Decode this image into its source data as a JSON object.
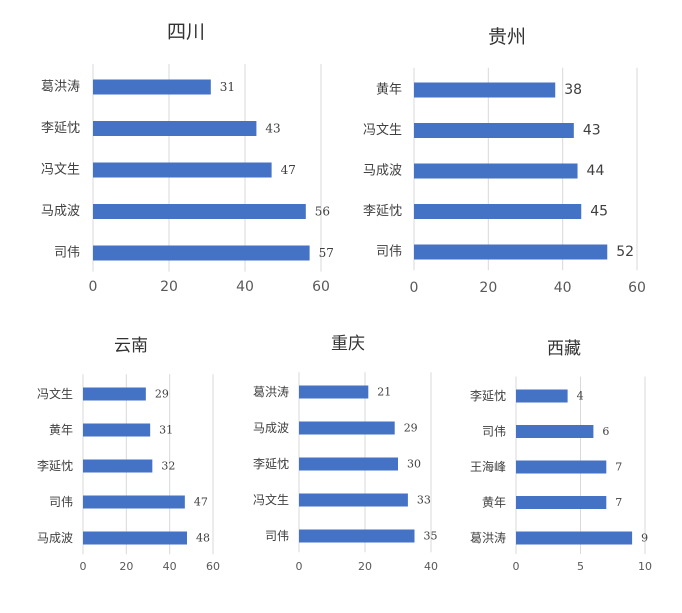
{
  "colors": {
    "bar": "#4472c4",
    "grid": "#d9d9d9",
    "text": "#404040"
  },
  "chart_data": [
    {
      "type": "bar",
      "orientation": "horizontal",
      "title": "四川",
      "categories": [
        "葛洪涛",
        "李延忱",
        "冯文生",
        "马成波",
        "司伟"
      ],
      "values": [
        31,
        43,
        47,
        56,
        57
      ],
      "xlim": [
        0,
        60
      ],
      "xticks": [
        "0",
        "20",
        "40",
        "60"
      ],
      "grid": true
    },
    {
      "type": "bar",
      "orientation": "horizontal",
      "title": "贵州",
      "categories": [
        "黄年",
        "冯文生",
        "马成波",
        "李延忱",
        "司伟"
      ],
      "values": [
        38,
        43,
        44,
        45,
        52
      ],
      "xlim": [
        0,
        60
      ],
      "xticks": [
        "0",
        "20",
        "40",
        "60"
      ],
      "grid": true
    },
    {
      "type": "bar",
      "orientation": "horizontal",
      "title": "云南",
      "categories": [
        "冯文生",
        "黄年",
        "李延忱",
        "司伟",
        "马成波"
      ],
      "values": [
        29,
        31,
        32,
        47,
        48
      ],
      "xlim": [
        0,
        60
      ],
      "xticks": [
        "0",
        "20",
        "40",
        "60"
      ],
      "grid": true
    },
    {
      "type": "bar",
      "orientation": "horizontal",
      "title": "重庆",
      "categories": [
        "葛洪涛",
        "马成波",
        "李延忱",
        "冯文生",
        "司伟"
      ],
      "values": [
        21,
        29,
        30,
        33,
        35
      ],
      "xlim": [
        0,
        40
      ],
      "xticks": [
        "0",
        "20",
        "40"
      ],
      "grid": true
    },
    {
      "type": "bar",
      "orientation": "horizontal",
      "title": "西藏",
      "categories": [
        "李延忱",
        "司伟",
        "王海峰",
        "黄年",
        "葛洪涛"
      ],
      "values": [
        4,
        6,
        7,
        7,
        9
      ],
      "xlim": [
        0,
        10
      ],
      "xticks": [
        "0",
        "5",
        "10"
      ],
      "grid": true
    }
  ]
}
